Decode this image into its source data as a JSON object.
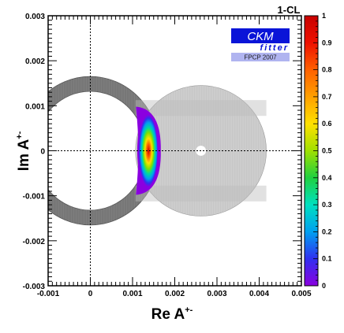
{
  "chart_data": {
    "type": "heatmap",
    "xlabel": "Re A",
    "xlabel_sup": "+-",
    "ylabel": "Im A",
    "ylabel_sup": "+-",
    "xlim": [
      -0.001,
      0.005
    ],
    "ylim": [
      -0.003,
      0.003
    ],
    "x_ticks": [
      {
        "value": -0.001,
        "label": "-0.001"
      },
      {
        "value": 0,
        "label": "0"
      },
      {
        "value": 0.001,
        "label": "0.001"
      },
      {
        "value": 0.002,
        "label": "0.002"
      },
      {
        "value": 0.003,
        "label": "0.003"
      },
      {
        "value": 0.004,
        "label": "0.004"
      },
      {
        "value": 0.005,
        "label": "0.005"
      }
    ],
    "y_ticks": [
      {
        "value": 0.003,
        "label": "0.003"
      },
      {
        "value": 0.002,
        "label": "0.002"
      },
      {
        "value": 0.001,
        "label": "0.001"
      },
      {
        "value": 0,
        "label": "0"
      },
      {
        "value": -0.001,
        "label": "-0.001"
      },
      {
        "value": -0.002,
        "label": "-0.002"
      },
      {
        "value": -0.003,
        "label": "-0.003"
      }
    ],
    "reference_lines": {
      "x": 0,
      "y": 0
    },
    "constraints": [
      {
        "shape": "annulus",
        "center": [
          0,
          0
        ],
        "r_inner": 0.00132,
        "r_outer": 0.00165,
        "color": "#777777"
      },
      {
        "shape": "disk",
        "center": [
          0.00262,
          0
        ],
        "radius": 0.00155,
        "hole_radius": 0.00012,
        "color": "#c8c8c8"
      }
    ],
    "cl_region": {
      "center": [
        0.00132,
        0
      ],
      "r_outer": 0.00165,
      "inner_x": 0.00108,
      "x_peak": 0.00135
    },
    "colorbar": {
      "title": "1-CL",
      "range": [
        0,
        1
      ],
      "ticks": [
        {
          "value": 1,
          "label": "1"
        },
        {
          "value": 0.9,
          "label": "0.9"
        },
        {
          "value": 0.8,
          "label": "0.8"
        },
        {
          "value": 0.7,
          "label": "0.7"
        },
        {
          "value": 0.6,
          "label": "0.6"
        },
        {
          "value": 0.5,
          "label": "0.5"
        },
        {
          "value": 0.4,
          "label": "0.4"
        },
        {
          "value": 0.3,
          "label": "0.3"
        },
        {
          "value": 0.2,
          "label": "0.2"
        },
        {
          "value": 0.1,
          "label": "0.1"
        },
        {
          "value": 0,
          "label": "0"
        }
      ],
      "colors": [
        "#8a00e0",
        "#3030f0",
        "#00a0f0",
        "#00e0c0",
        "#20d040",
        "#a0e000",
        "#ffe000",
        "#ffa000",
        "#ff6000",
        "#ee1000",
        "#c80000"
      ]
    },
    "logo": {
      "main": "CKM",
      "sub": "fitter",
      "conference": "FPCP 2007",
      "colors": {
        "bg": "#0a14d8",
        "conf_bg": "#b0b4f0"
      }
    }
  }
}
